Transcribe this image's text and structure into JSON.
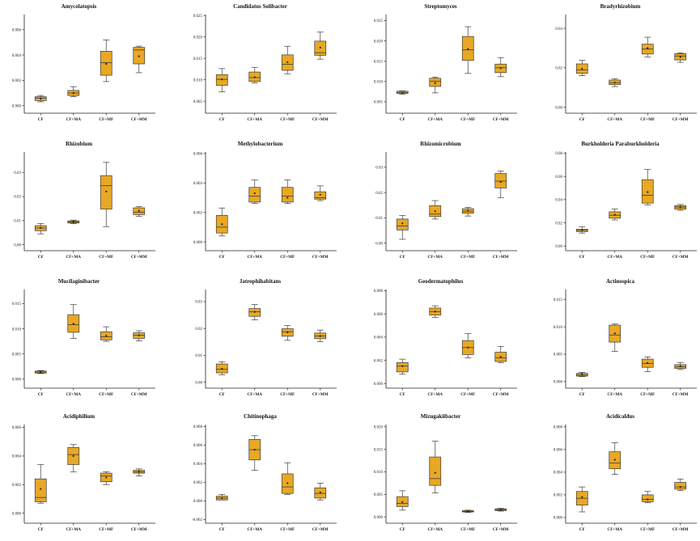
{
  "style": {
    "box_fill": "#E8A825",
    "box_stroke": "#3a3a3a",
    "axis_color": "#222222"
  },
  "chart_data": [
    {
      "type": "box",
      "title": "Amycolatopsis",
      "categories": [
        "CF",
        "CF+MA",
        "CF+MF",
        "CF+MM"
      ],
      "yticks": [
        "0.000",
        "0.002",
        "0.004",
        "0.006"
      ],
      "ylim": [
        -0.0006,
        0.0072
      ],
      "boxes": [
        {
          "min": 0.0003,
          "q1": 0.0004,
          "median": 0.0006,
          "q3": 0.0007,
          "max": 0.0008,
          "mean": 0.00055
        },
        {
          "min": 0.0007,
          "q1": 0.0008,
          "median": 0.001,
          "q3": 0.0012,
          "max": 0.0015,
          "mean": 0.001
        },
        {
          "min": 0.0019,
          "q1": 0.0024,
          "median": 0.0034,
          "q3": 0.0043,
          "max": 0.0052,
          "mean": 0.0033
        },
        {
          "min": 0.0026,
          "q1": 0.0033,
          "median": 0.0044,
          "q3": 0.0046,
          "max": 0.0047,
          "mean": 0.0039
        }
      ]
    },
    {
      "type": "box",
      "title": "Candidatus Solibacter",
      "categories": [
        "CF",
        "CF+MA",
        "CF+MF",
        "CF+MM"
      ],
      "yticks": [
        "0.005",
        "0.010",
        "0.015",
        "0.020",
        "0.025"
      ],
      "ylim": [
        0.0022,
        0.0252
      ],
      "boxes": [
        {
          "min": 0.0072,
          "q1": 0.0087,
          "median": 0.0101,
          "q3": 0.0112,
          "max": 0.0126,
          "mean": 0.0101
        },
        {
          "min": 0.0093,
          "q1": 0.0096,
          "median": 0.0105,
          "q3": 0.0118,
          "max": 0.0129,
          "mean": 0.0106
        },
        {
          "min": 0.0114,
          "q1": 0.0122,
          "median": 0.0136,
          "q3": 0.0158,
          "max": 0.0178,
          "mean": 0.0141
        },
        {
          "min": 0.0148,
          "q1": 0.0157,
          "median": 0.0163,
          "q3": 0.019,
          "max": 0.0211,
          "mean": 0.0175
        }
      ]
    },
    {
      "type": "box",
      "title": "Streptomyces",
      "categories": [
        "CF",
        "CF+MA",
        "CF+MF",
        "CF+MM"
      ],
      "yticks": [
        "0.005",
        "0.010",
        "0.015",
        "0.020",
        "0.025"
      ],
      "ylim": [
        0.0022,
        0.0265
      ],
      "boxes": [
        {
          "min": 0.0069,
          "q1": 0.0071,
          "median": 0.0073,
          "q3": 0.0076,
          "max": 0.0077,
          "mean": 0.0072
        },
        {
          "min": 0.0072,
          "q1": 0.0088,
          "median": 0.0101,
          "q3": 0.0108,
          "max": 0.0111,
          "mean": 0.0096
        },
        {
          "min": 0.012,
          "q1": 0.0152,
          "median": 0.0178,
          "q3": 0.0211,
          "max": 0.0235,
          "mean": 0.018
        },
        {
          "min": 0.0112,
          "q1": 0.0122,
          "median": 0.0134,
          "q3": 0.0143,
          "max": 0.0159,
          "mean": 0.0133
        }
      ]
    },
    {
      "type": "box",
      "title": "Bradyrhizobium",
      "categories": [
        "CF",
        "CF+MA",
        "CF+MF",
        "CF+MM"
      ],
      "yticks": [
        "0.00",
        "0.02",
        "0.04"
      ],
      "ylim": [
        -0.003,
        0.047
      ],
      "boxes": [
        {
          "min": 0.016,
          "q1": 0.0172,
          "median": 0.019,
          "q3": 0.022,
          "max": 0.0238,
          "mean": 0.0195
        },
        {
          "min": 0.0105,
          "q1": 0.0115,
          "median": 0.0125,
          "q3": 0.0138,
          "max": 0.0145,
          "mean": 0.0125
        },
        {
          "min": 0.0255,
          "q1": 0.027,
          "median": 0.0295,
          "q3": 0.032,
          "max": 0.0355,
          "mean": 0.03
        },
        {
          "min": 0.0228,
          "q1": 0.024,
          "median": 0.026,
          "q3": 0.0272,
          "max": 0.0276,
          "mean": 0.0255
        }
      ]
    },
    {
      "type": "box",
      "title": "Rhizobium",
      "categories": [
        "CF",
        "CF+MA",
        "CF+MF",
        "CF+MM"
      ],
      "yticks": [
        "0.00",
        "0.01",
        "0.02",
        "0.03"
      ],
      "ylim": [
        -0.0025,
        0.0385
      ],
      "boxes": [
        {
          "min": 0.0045,
          "q1": 0.0058,
          "median": 0.0069,
          "q3": 0.0079,
          "max": 0.0088,
          "mean": 0.007
        },
        {
          "min": 0.0087,
          "q1": 0.009,
          "median": 0.0094,
          "q3": 0.0099,
          "max": 0.0102,
          "mean": 0.0095
        },
        {
          "min": 0.0075,
          "q1": 0.0148,
          "median": 0.0245,
          "q3": 0.0287,
          "max": 0.0342,
          "mean": 0.0221
        },
        {
          "min": 0.0118,
          "q1": 0.0125,
          "median": 0.0135,
          "q3": 0.0153,
          "max": 0.0158,
          "mean": 0.0141
        }
      ]
    },
    {
      "type": "box",
      "title": "Methylobacterium",
      "categories": [
        "CF",
        "CF+MA",
        "CF+MF",
        "CF+MM"
      ],
      "yticks": [
        "0.000",
        "0.002",
        "0.004",
        "0.006"
      ],
      "ylim": [
        -0.0006,
        0.0061
      ],
      "boxes": [
        {
          "min": 0.0004,
          "q1": 0.0006,
          "median": 0.001,
          "q3": 0.0018,
          "max": 0.0023,
          "mean": 0.0012
        },
        {
          "min": 0.0026,
          "q1": 0.0027,
          "median": 0.0031,
          "q3": 0.0037,
          "max": 0.0042,
          "mean": 0.0033
        },
        {
          "min": 0.0026,
          "q1": 0.0027,
          "median": 0.0031,
          "q3": 0.0037,
          "max": 0.0042,
          "mean": 0.003
        },
        {
          "min": 0.0028,
          "q1": 0.0029,
          "median": 0.003,
          "q3": 0.0034,
          "max": 0.0038,
          "mean": 0.0032
        }
      ]
    },
    {
      "type": "box",
      "title": "Rhizomicrobium",
      "categories": [
        "CF",
        "CF+MA",
        "CF+MF",
        "CF+MM"
      ],
      "yticks": [
        "0.00",
        "0.01",
        "0.02",
        "0.03"
      ],
      "ylim": [
        -0.003,
        0.036
      ],
      "boxes": [
        {
          "min": 0.0015,
          "q1": 0.0052,
          "median": 0.0068,
          "q3": 0.0095,
          "max": 0.0109,
          "mean": 0.0078
        },
        {
          "min": 0.0095,
          "q1": 0.0105,
          "median": 0.0115,
          "q3": 0.0148,
          "max": 0.0168,
          "mean": 0.0126
        },
        {
          "min": 0.0107,
          "q1": 0.0118,
          "median": 0.0126,
          "q3": 0.0136,
          "max": 0.0141,
          "mean": 0.0128
        },
        {
          "min": 0.018,
          "q1": 0.0218,
          "median": 0.0245,
          "q3": 0.0275,
          "max": 0.0285,
          "mean": 0.0242
        }
      ]
    },
    {
      "type": "box",
      "title": "Burkholderia Paraburkholderia",
      "categories": [
        "CF",
        "CF+MA",
        "CF+MF",
        "CF+MM"
      ],
      "yticks": [
        "0.00",
        "0.02",
        "0.04",
        "0.06",
        "0.08"
      ],
      "ylim": [
        -0.004,
        0.081
      ],
      "boxes": [
        {
          "min": 0.0112,
          "q1": 0.0125,
          "median": 0.0135,
          "q3": 0.0145,
          "max": 0.0165,
          "mean": 0.0138
        },
        {
          "min": 0.0225,
          "q1": 0.024,
          "median": 0.0265,
          "q3": 0.0295,
          "max": 0.0318,
          "mean": 0.027
        },
        {
          "min": 0.0355,
          "q1": 0.037,
          "median": 0.0438,
          "q3": 0.0572,
          "max": 0.066,
          "mean": 0.0465
        },
        {
          "min": 0.0308,
          "q1": 0.0318,
          "median": 0.0335,
          "q3": 0.0348,
          "max": 0.0358,
          "mean": 0.0335
        }
      ]
    },
    {
      "type": "box",
      "title": "Mucilaginibacter",
      "categories": [
        "CF",
        "CF+MA",
        "CF+MF",
        "CF+MM"
      ],
      "yticks": [
        "0.000",
        "0.005",
        "0.010",
        "0.015"
      ],
      "ylim": [
        -0.0018,
        0.0178
      ],
      "boxes": [
        {
          "min": 0.0011,
          "q1": 0.0012,
          "median": 0.0014,
          "q3": 0.0016,
          "max": 0.0017,
          "mean": 0.0014
        },
        {
          "min": 0.0081,
          "q1": 0.0093,
          "median": 0.0108,
          "q3": 0.0128,
          "max": 0.0148,
          "mean": 0.011
        },
        {
          "min": 0.0075,
          "q1": 0.0078,
          "median": 0.0084,
          "q3": 0.0094,
          "max": 0.0104,
          "mean": 0.0086
        },
        {
          "min": 0.0076,
          "q1": 0.0081,
          "median": 0.0087,
          "q3": 0.0092,
          "max": 0.0096,
          "mean": 0.0087
        }
      ]
    },
    {
      "type": "box",
      "title": "Jatrophihabitans",
      "categories": [
        "CF",
        "CF+MA",
        "CF+MF",
        "CF+MM"
      ],
      "yticks": [
        "0.00",
        "0.01",
        "0.02",
        "0.03"
      ],
      "ylim": [
        -0.0022,
        0.0345
      ],
      "boxes": [
        {
          "min": 0.0028,
          "q1": 0.0035,
          "median": 0.0048,
          "q3": 0.0068,
          "max": 0.0076,
          "mean": 0.005
        },
        {
          "min": 0.0232,
          "q1": 0.0245,
          "median": 0.0262,
          "q3": 0.0274,
          "max": 0.0289,
          "mean": 0.0262
        },
        {
          "min": 0.0156,
          "q1": 0.0171,
          "median": 0.0188,
          "q3": 0.0199,
          "max": 0.0211,
          "mean": 0.0186
        },
        {
          "min": 0.0151,
          "q1": 0.0162,
          "median": 0.0172,
          "q3": 0.0183,
          "max": 0.0194,
          "mean": 0.0172
        }
      ]
    },
    {
      "type": "box",
      "title": "Geodermatophilus",
      "categories": [
        "CF",
        "CF+MA",
        "CF+MF",
        "CF+MM"
      ],
      "yticks": [
        "0.000",
        "0.002",
        "0.004",
        "0.006",
        "0.008"
      ],
      "ylim": [
        -0.0004,
        0.0081
      ],
      "boxes": [
        {
          "min": 0.0008,
          "q1": 0.001,
          "median": 0.0015,
          "q3": 0.0018,
          "max": 0.0021,
          "mean": 0.0015
        },
        {
          "min": 0.0057,
          "q1": 0.0059,
          "median": 0.0062,
          "q3": 0.0065,
          "max": 0.0067,
          "mean": 0.0062
        },
        {
          "min": 0.0022,
          "q1": 0.0025,
          "median": 0.0031,
          "q3": 0.0037,
          "max": 0.0043,
          "mean": 0.0031
        },
        {
          "min": 0.0018,
          "q1": 0.0019,
          "median": 0.0022,
          "q3": 0.0027,
          "max": 0.0032,
          "mean": 0.0023
        }
      ]
    },
    {
      "type": "box",
      "title": "Actinospica",
      "categories": [
        "CF",
        "CF+MA",
        "CF+MF",
        "CF+MM"
      ],
      "yticks": [
        "0.000",
        "0.005",
        "0.010",
        "0.015"
      ],
      "ylim": [
        -0.0012,
        0.0168
      ],
      "boxes": [
        {
          "min": 0.0009,
          "q1": 0.001,
          "median": 0.0012,
          "q3": 0.0015,
          "max": 0.0017,
          "mean": 0.0013
        },
        {
          "min": 0.0055,
          "q1": 0.0072,
          "median": 0.0085,
          "q3": 0.0103,
          "max": 0.0105,
          "mean": 0.0088
        },
        {
          "min": 0.0018,
          "q1": 0.0026,
          "median": 0.0033,
          "q3": 0.0041,
          "max": 0.0045,
          "mean": 0.0034
        },
        {
          "min": 0.0022,
          "q1": 0.0024,
          "median": 0.0027,
          "q3": 0.0031,
          "max": 0.0035,
          "mean": 0.0028
        }
      ]
    },
    {
      "type": "box",
      "title": "Acidiphilium",
      "categories": [
        "CF",
        "CF+MA",
        "CF+MF",
        "CF+MM"
      ],
      "yticks": [
        "0.000",
        "0.002",
        "0.004",
        "0.006"
      ],
      "ylim": [
        -0.0007,
        0.0062
      ],
      "boxes": [
        {
          "min": 0.0007,
          "q1": 0.0008,
          "median": 0.0011,
          "q3": 0.0024,
          "max": 0.0034,
          "mean": 0.0017
        },
        {
          "min": 0.0029,
          "q1": 0.0034,
          "median": 0.0041,
          "q3": 0.0046,
          "max": 0.0048,
          "mean": 0.004
        },
        {
          "min": 0.002,
          "q1": 0.0022,
          "median": 0.0026,
          "q3": 0.0028,
          "max": 0.0029,
          "mean": 0.0025
        },
        {
          "min": 0.0026,
          "q1": 0.0028,
          "median": 0.0029,
          "q3": 0.003,
          "max": 0.0031,
          "mean": 0.0029
        }
      ]
    },
    {
      "type": "box",
      "title": "Chitinophaga",
      "categories": [
        "CF",
        "CF+MA",
        "CF+MF",
        "CF+MM"
      ],
      "yticks": [
        "-0.002",
        "0.000",
        "0.002",
        "0.004",
        "0.006",
        "0.008"
      ],
      "ylim": [
        -0.0024,
        0.0082
      ],
      "boxes": [
        {
          "min": 0.0001,
          "q1": 0.0001,
          "median": 0.0003,
          "q3": 0.0005,
          "max": 0.0007,
          "mean": 0.0003
        },
        {
          "min": 0.0033,
          "q1": 0.0044,
          "median": 0.0055,
          "q3": 0.0066,
          "max": 0.007,
          "mean": 0.0055
        },
        {
          "min": 0.0007,
          "q1": 0.0008,
          "median": 0.0015,
          "q3": 0.0029,
          "max": 0.0041,
          "mean": 0.0019
        },
        {
          "min": 0.0001,
          "q1": 0.0003,
          "median": 0.0008,
          "q3": 0.0014,
          "max": 0.0019,
          "mean": 0.0009
        }
      ]
    },
    {
      "type": "box",
      "title": "Mizugakiibacter",
      "categories": [
        "CF",
        "CF+MA",
        "CF+MF",
        "CF+MM"
      ],
      "yticks": [
        "0.000",
        "0.005",
        "0.010",
        "0.015",
        "0.020"
      ],
      "ylim": [
        -0.0014,
        0.0205
      ],
      "boxes": [
        {
          "min": 0.0015,
          "q1": 0.0023,
          "median": 0.003,
          "q3": 0.0045,
          "max": 0.0058,
          "mean": 0.0033
        },
        {
          "min": 0.0053,
          "q1": 0.007,
          "median": 0.0085,
          "q3": 0.0133,
          "max": 0.0168,
          "mean": 0.0098
        },
        {
          "min": 0.001,
          "q1": 0.0011,
          "median": 0.0012,
          "q3": 0.0014,
          "max": 0.0015,
          "mean": 0.0012
        },
        {
          "min": 0.0013,
          "q1": 0.0014,
          "median": 0.0016,
          "q3": 0.0018,
          "max": 0.0019,
          "mean": 0.0016
        }
      ]
    },
    {
      "type": "box",
      "title": "Acidicaldus",
      "categories": [
        "CF",
        "CF+MA",
        "CF+MF",
        "CF+MM"
      ],
      "yticks": [
        "0.000",
        "0.002",
        "0.004",
        "0.006",
        "0.008"
      ],
      "ylim": [
        -0.0005,
        0.0082
      ],
      "boxes": [
        {
          "min": 0.0005,
          "q1": 0.0011,
          "median": 0.0017,
          "q3": 0.0023,
          "max": 0.0027,
          "mean": 0.0018
        },
        {
          "min": 0.0038,
          "q1": 0.0043,
          "median": 0.0048,
          "q3": 0.0058,
          "max": 0.0066,
          "mean": 0.0051
        },
        {
          "min": 0.0013,
          "q1": 0.0014,
          "median": 0.0016,
          "q3": 0.002,
          "max": 0.0023,
          "mean": 0.0016
        },
        {
          "min": 0.0024,
          "q1": 0.0025,
          "median": 0.0027,
          "q3": 0.0031,
          "max": 0.0034,
          "mean": 0.0027
        }
      ]
    }
  ]
}
